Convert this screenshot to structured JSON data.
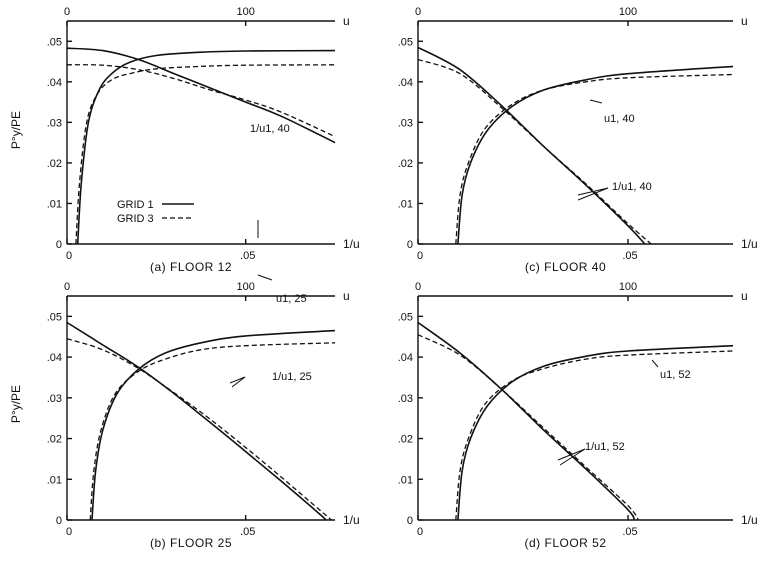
{
  "y_axis_label": "P°y/PE",
  "legend": {
    "entries": [
      {
        "label": "GRID 1",
        "style": "solid"
      },
      {
        "label": "GRID 3",
        "style": "dashed"
      }
    ]
  },
  "chart_data": [
    {
      "type": "line",
      "panel": "a",
      "caption": "(a)  FLOOR 12",
      "xlabel_bottom": "1/u",
      "xlabel_top": "u",
      "bottom_axis": {
        "range": [
          0,
          0.075
        ],
        "ticks": [
          {
            "v": 0,
            "t": "0"
          },
          {
            "v": 0.05,
            "t": ".05"
          }
        ]
      },
      "top_axis": {
        "range": [
          0,
          150
        ],
        "ticks": [
          {
            "v": 0,
            "t": "0"
          },
          {
            "v": 100,
            "t": "100"
          }
        ]
      },
      "y_axis": {
        "range": [
          0,
          0.055
        ],
        "ticks": [
          {
            "v": 0,
            "t": "0"
          },
          {
            "v": 0.01,
            "t": ".01"
          },
          {
            "v": 0.02,
            "t": ".02"
          },
          {
            "v": 0.03,
            "t": ".03"
          },
          {
            "v": 0.04,
            "t": ".04"
          },
          {
            "v": 0.05,
            "t": ".05"
          }
        ]
      },
      "series": [
        {
          "name": "GRID 1",
          "axis": "bottom",
          "style": "solid",
          "points": [
            [
              0,
              0.0483
            ],
            [
              0.01,
              0.0477
            ],
            [
              0.02,
              0.0455
            ],
            [
              0.03,
              0.042
            ],
            [
              0.04,
              0.0385
            ],
            [
              0.05,
              0.035
            ],
            [
              0.06,
              0.0315
            ],
            [
              0.075,
              0.025
            ]
          ]
        },
        {
          "name": "GRID 3",
          "axis": "bottom",
          "style": "dashed",
          "points": [
            [
              0,
              0.0442
            ],
            [
              0.01,
              0.0441
            ],
            [
              0.02,
              0.043
            ],
            [
              0.03,
              0.0408
            ],
            [
              0.04,
              0.038
            ],
            [
              0.05,
              0.0355
            ],
            [
              0.06,
              0.0325
            ],
            [
              0.075,
              0.0265
            ]
          ]
        },
        {
          "name": "GRID 1",
          "axis": "top",
          "style": "solid",
          "points": [
            [
              6,
              0
            ],
            [
              8,
              0.015
            ],
            [
              12,
              0.03
            ],
            [
              18,
              0.038
            ],
            [
              25,
              0.042
            ],
            [
              35,
              0.0448
            ],
            [
              50,
              0.0465
            ],
            [
              75,
              0.0473
            ],
            [
              100,
              0.0476
            ],
            [
              150,
              0.0477
            ]
          ]
        },
        {
          "name": "GRID 3",
          "axis": "top",
          "style": "dashed",
          "points": [
            [
              5,
              0
            ],
            [
              7,
              0.015
            ],
            [
              11,
              0.03
            ],
            [
              17,
              0.037
            ],
            [
              25,
              0.0405
            ],
            [
              35,
              0.042
            ],
            [
              50,
              0.0432
            ],
            [
              75,
              0.0438
            ],
            [
              100,
              0.0441
            ],
            [
              150,
              0.0442
            ]
          ]
        }
      ],
      "annotations": [
        {
          "text": "1/u1, 40"
        }
      ]
    },
    {
      "type": "line",
      "panel": "c",
      "caption": "(c)  FLOOR 40",
      "xlabel_bottom": "1/u",
      "xlabel_top": "u",
      "bottom_axis": {
        "range": [
          0,
          0.075
        ],
        "ticks": [
          {
            "v": 0,
            "t": "0"
          },
          {
            "v": 0.05,
            "t": ".05"
          }
        ]
      },
      "top_axis": {
        "range": [
          0,
          150
        ],
        "ticks": [
          {
            "v": 0,
            "t": "0"
          },
          {
            "v": 100,
            "t": "100"
          }
        ]
      },
      "y_axis": {
        "range": [
          0,
          0.055
        ],
        "ticks": [
          {
            "v": 0,
            "t": "0"
          },
          {
            "v": 0.01,
            "t": ".01"
          },
          {
            "v": 0.02,
            "t": ".02"
          },
          {
            "v": 0.03,
            "t": ".03"
          },
          {
            "v": 0.04,
            "t": ".04"
          },
          {
            "v": 0.05,
            "t": ".05"
          }
        ]
      },
      "series": [
        {
          "name": "GRID 1",
          "axis": "bottom",
          "style": "solid",
          "points": [
            [
              0,
              0.0485
            ],
            [
              0.01,
              0.043
            ],
            [
              0.02,
              0.034
            ],
            [
              0.03,
              0.024
            ],
            [
              0.04,
              0.0145
            ],
            [
              0.05,
              0.0045
            ],
            [
              0.054,
              0
            ]
          ]
        },
        {
          "name": "GRID 3",
          "axis": "bottom",
          "style": "dashed",
          "points": [
            [
              0,
              0.0455
            ],
            [
              0.01,
              0.042
            ],
            [
              0.02,
              0.0335
            ],
            [
              0.03,
              0.024
            ],
            [
              0.04,
              0.0148
            ],
            [
              0.05,
              0.005
            ],
            [
              0.0555,
              0
            ]
          ]
        },
        {
          "name": "GRID 1",
          "axis": "top",
          "style": "solid",
          "points": [
            [
              19,
              0
            ],
            [
              21,
              0.012
            ],
            [
              25,
              0.02
            ],
            [
              33,
              0.028
            ],
            [
              45,
              0.034
            ],
            [
              60,
              0.038
            ],
            [
              80,
              0.0405
            ],
            [
              100,
              0.042
            ],
            [
              150,
              0.0438
            ]
          ]
        },
        {
          "name": "GRID 3",
          "axis": "top",
          "style": "dashed",
          "points": [
            [
              18,
              0
            ],
            [
              20,
              0.012
            ],
            [
              24,
              0.02
            ],
            [
              32,
              0.0285
            ],
            [
              45,
              0.0345
            ],
            [
              60,
              0.038
            ],
            [
              80,
              0.04
            ],
            [
              100,
              0.041
            ],
            [
              150,
              0.0418
            ]
          ]
        }
      ],
      "annotations": [
        {
          "text": "u1, 40"
        },
        {
          "text": "1/u1, 40"
        }
      ]
    },
    {
      "type": "line",
      "panel": "b",
      "caption": "(b)  FLOOR 25",
      "xlabel_bottom": "1/u",
      "xlabel_top": "u",
      "bottom_axis": {
        "range": [
          0,
          0.075
        ],
        "ticks": [
          {
            "v": 0,
            "t": "0"
          },
          {
            "v": 0.05,
            "t": ".05"
          }
        ]
      },
      "top_axis": {
        "range": [
          0,
          150
        ],
        "ticks": [
          {
            "v": 0,
            "t": "0"
          },
          {
            "v": 100,
            "t": "100"
          }
        ]
      },
      "y_axis": {
        "range": [
          0,
          0.055
        ],
        "ticks": [
          {
            "v": 0,
            "t": "0"
          },
          {
            "v": 0.01,
            "t": ".01"
          },
          {
            "v": 0.02,
            "t": ".02"
          },
          {
            "v": 0.03,
            "t": ".03"
          },
          {
            "v": 0.04,
            "t": ".04"
          },
          {
            "v": 0.05,
            "t": ".05"
          }
        ]
      },
      "series": [
        {
          "name": "GRID 1",
          "axis": "bottom",
          "style": "solid",
          "points": [
            [
              0,
              0.0485
            ],
            [
              0.01,
              0.043
            ],
            [
              0.02,
              0.0375
            ],
            [
              0.03,
              0.031
            ],
            [
              0.04,
              0.024
            ],
            [
              0.05,
              0.0168
            ],
            [
              0.06,
              0.0095
            ],
            [
              0.07,
              0.002
            ],
            [
              0.0725,
              0
            ]
          ]
        },
        {
          "name": "GRID 3",
          "axis": "bottom",
          "style": "dashed",
          "points": [
            [
              0,
              0.0445
            ],
            [
              0.01,
              0.0418
            ],
            [
              0.02,
              0.0372
            ],
            [
              0.03,
              0.0312
            ],
            [
              0.04,
              0.0248
            ],
            [
              0.05,
              0.0178
            ],
            [
              0.06,
              0.0105
            ],
            [
              0.07,
              0.003
            ],
            [
              0.074,
              0
            ]
          ]
        },
        {
          "name": "GRID 1",
          "axis": "top",
          "style": "solid",
          "points": [
            [
              14,
              0
            ],
            [
              16,
              0.012
            ],
            [
              20,
              0.022
            ],
            [
              28,
              0.031
            ],
            [
              40,
              0.037
            ],
            [
              55,
              0.041
            ],
            [
              75,
              0.0435
            ],
            [
              100,
              0.0452
            ],
            [
              150,
              0.0465
            ]
          ]
        },
        {
          "name": "GRID 3",
          "axis": "top",
          "style": "dashed",
          "points": [
            [
              13,
              0
            ],
            [
              15,
              0.012
            ],
            [
              19,
              0.022
            ],
            [
              27,
              0.031
            ],
            [
              40,
              0.0365
            ],
            [
              55,
              0.0395
            ],
            [
              75,
              0.0418
            ],
            [
              100,
              0.0428
            ],
            [
              150,
              0.0435
            ]
          ]
        }
      ],
      "annotations": [
        {
          "text": "u1, 25"
        },
        {
          "text": "1/u1, 25"
        }
      ]
    },
    {
      "type": "line",
      "panel": "d",
      "caption": "(d)  FLOOR 52",
      "xlabel_bottom": "1/u",
      "xlabel_top": "u",
      "bottom_axis": {
        "range": [
          0,
          0.075
        ],
        "ticks": [
          {
            "v": 0,
            "t": "0"
          },
          {
            "v": 0.05,
            "t": ".05"
          }
        ]
      },
      "top_axis": {
        "range": [
          0,
          150
        ],
        "ticks": [
          {
            "v": 0,
            "t": "0"
          },
          {
            "v": 100,
            "t": "100"
          }
        ]
      },
      "y_axis": {
        "range": [
          0,
          0.055
        ],
        "ticks": [
          {
            "v": 0,
            "t": "0"
          },
          {
            "v": 0.01,
            "t": ".01"
          },
          {
            "v": 0.02,
            "t": ".02"
          },
          {
            "v": 0.03,
            "t": ".03"
          },
          {
            "v": 0.04,
            "t": ".04"
          },
          {
            "v": 0.05,
            "t": ".05"
          }
        ]
      },
      "series": [
        {
          "name": "GRID 1",
          "axis": "bottom",
          "style": "solid",
          "points": [
            [
              0,
              0.0485
            ],
            [
              0.01,
              0.041
            ],
            [
              0.02,
              0.032
            ],
            [
              0.03,
              0.022
            ],
            [
              0.04,
              0.0125
            ],
            [
              0.05,
              0.0025
            ],
            [
              0.0515,
              0
            ]
          ]
        },
        {
          "name": "GRID 3",
          "axis": "bottom",
          "style": "dashed",
          "points": [
            [
              0,
              0.0455
            ],
            [
              0.01,
              0.0405
            ],
            [
              0.02,
              0.032
            ],
            [
              0.03,
              0.0225
            ],
            [
              0.04,
              0.013
            ],
            [
              0.05,
              0.0035
            ],
            [
              0.0525,
              0
            ]
          ]
        },
        {
          "name": "GRID 1",
          "axis": "top",
          "style": "solid",
          "points": [
            [
              19,
              0
            ],
            [
              21,
              0.012
            ],
            [
              25,
              0.02
            ],
            [
              33,
              0.028
            ],
            [
              45,
              0.034
            ],
            [
              60,
              0.0378
            ],
            [
              80,
              0.0402
            ],
            [
              100,
              0.0415
            ],
            [
              150,
              0.0428
            ]
          ]
        },
        {
          "name": "GRID 3",
          "axis": "top",
          "style": "dashed",
          "points": [
            [
              18,
              0
            ],
            [
              20,
              0.012
            ],
            [
              24,
              0.02
            ],
            [
              32,
              0.0285
            ],
            [
              45,
              0.0342
            ],
            [
              60,
              0.0372
            ],
            [
              80,
              0.0395
            ],
            [
              100,
              0.0405
            ],
            [
              150,
              0.0415
            ]
          ]
        }
      ],
      "annotations": [
        {
          "text": "u1, 52"
        },
        {
          "text": "1/u1, 52"
        }
      ]
    }
  ]
}
